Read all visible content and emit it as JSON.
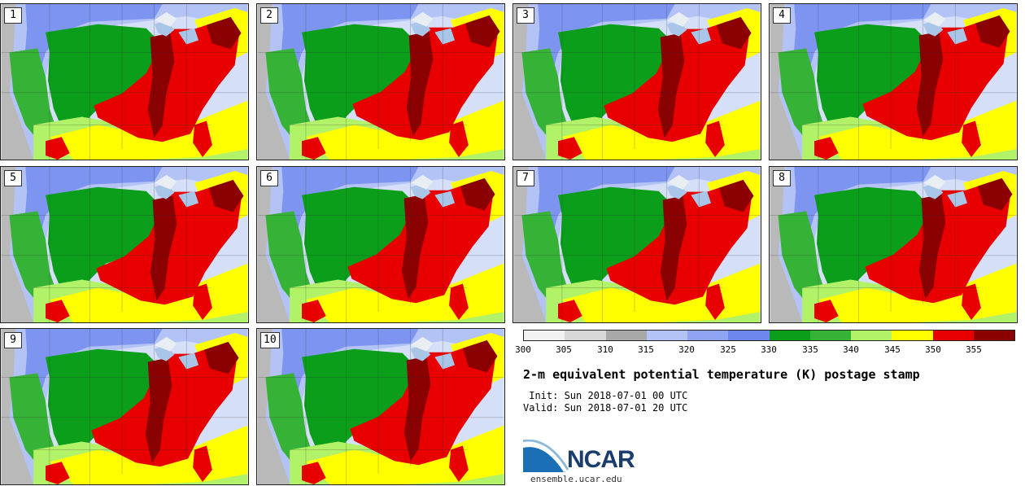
{
  "panels": [
    {
      "label": "1"
    },
    {
      "label": "2"
    },
    {
      "label": "3"
    },
    {
      "label": "4"
    },
    {
      "label": "5"
    },
    {
      "label": "6"
    },
    {
      "label": "7"
    },
    {
      "label": "8"
    },
    {
      "label": "9"
    },
    {
      "label": "10"
    }
  ],
  "colorbar": {
    "colors": [
      "#f2f2f2",
      "#d8d8d8",
      "#a8a8a8",
      "#b4c3f5",
      "#8fa5f3",
      "#6f86f0",
      "#0a9e1a",
      "#36b236",
      "#b2f268",
      "#ffff00",
      "#e80000",
      "#8b0000"
    ],
    "ticks": [
      "300",
      "305",
      "310",
      "315",
      "320",
      "325",
      "330",
      "335",
      "340",
      "345",
      "350",
      "355"
    ]
  },
  "title": "2-m equivalent potential temperature (K) postage stamp",
  "init": " Init: Sun 2018-07-01 00 UTC",
  "valid": "Valid: Sun 2018-07-01 20 UTC",
  "logo_text": "NCAR",
  "url": "ensemble.ucar.edu"
}
